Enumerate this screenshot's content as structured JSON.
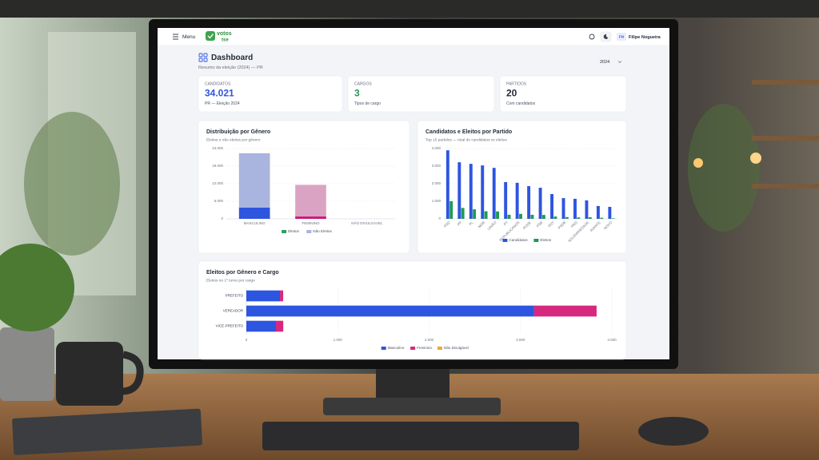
{
  "topbar": {
    "menu": "Menu",
    "logo_top": "votos",
    "logo_bottom": "tse",
    "user_initials": "FN",
    "user_name": "Filipe Nogueira"
  },
  "header": {
    "title": "Dashboard",
    "subtitle": "Resumo da eleição (2024) — PR",
    "year": "2024"
  },
  "cards": [
    {
      "label": "CANDIDATOS",
      "value": "34.021",
      "note": "PR — Eleição 2024",
      "color": "#2d55e0"
    },
    {
      "label": "CARGOS",
      "value": "3",
      "note": "Tipos de cargo",
      "color": "#1f9a55"
    },
    {
      "label": "PARTIDOS",
      "value": "20",
      "note": "Com candidatos",
      "color": "#1f2937"
    }
  ],
  "chart_data": [
    {
      "type": "bar",
      "stacked": true,
      "orientation": "vertical",
      "legend": "bottom",
      "grid": true,
      "title": "Distribuição por Gênero",
      "subtitle": "Eleitos e não eleitos por gênero",
      "categories": [
        "MASCULINO",
        "FEMININO",
        "NÃO DIVULGÁVEL"
      ],
      "series": [
        {
          "name": "Eleitos",
          "color": "#2e9e5b",
          "bar_colors": [
            "#2d55e0",
            "#c8177a",
            "#9ca3af"
          ],
          "values": [
            3840,
            800,
            0
          ]
        },
        {
          "name": "Não Eleitos",
          "color": "#a9b5de",
          "bar_colors": [
            "#a9b5de",
            "#dba3c3",
            "#d1d5db"
          ],
          "values": [
            18560,
            10800,
            0
          ]
        }
      ],
      "ylim": [
        0,
        24000
      ],
      "yticks": [
        0,
        {
          "value": 6000,
          "label": "6.000"
        },
        {
          "value": 12000,
          "label": "12.000"
        },
        {
          "value": 18000,
          "label": "18.000"
        },
        {
          "value": 24000,
          "label": "24.000"
        }
      ]
    },
    {
      "type": "bar",
      "stacked": false,
      "orientation": "vertical",
      "legend": "bottom",
      "grid": true,
      "rotate_labels": true,
      "title": "Candidatos e Eleitos por Partido",
      "subtitle": "Top 15 partidos — total de candidatos vs eleitos",
      "categories": [
        "PSD",
        "PP",
        "PL",
        "MDB",
        "UNIÃO",
        "PT",
        "REPUBLICANOS",
        "PODE",
        "PSB",
        "PDT",
        "PSDB",
        "PRD",
        "SOLIDARIEDADE",
        "AVANTE",
        "NOVO"
      ],
      "series": [
        {
          "name": "Candidatos",
          "color": "#2d55e0",
          "values": [
            3900,
            3220,
            3130,
            3040,
            2900,
            2090,
            2050,
            1860,
            1770,
            1410,
            1180,
            1140,
            1050,
            730,
            680
          ]
        },
        {
          "name": "Eleitos",
          "color": "#1f9a55",
          "values": [
            1000,
            620,
            540,
            430,
            420,
            230,
            280,
            230,
            220,
            130,
            100,
            80,
            90,
            60,
            30
          ]
        }
      ],
      "ylim": [
        0,
        4000
      ],
      "yticks": [
        0,
        {
          "value": 1000,
          "label": "1.000"
        },
        {
          "value": 2000,
          "label": "2.000"
        },
        {
          "value": 3000,
          "label": "3.000"
        },
        {
          "value": 4000,
          "label": "4.000"
        }
      ]
    },
    {
      "type": "bar",
      "stacked": true,
      "orientation": "horizontal",
      "legend": "bottom",
      "grid": true,
      "title": "Eleitos por Gênero e Cargo",
      "subtitle": "Eleitos no 1º turno por cargo",
      "categories": [
        "PREFEITO",
        "VEREADOR",
        "VICE-PREFEITO"
      ],
      "series": [
        {
          "name": "Masculino",
          "color": "#2d55e0",
          "values": [
            368,
            3150,
            324
          ]
        },
        {
          "name": "Feminino",
          "color": "#d6287f",
          "values": [
            35,
            683,
            80
          ]
        },
        {
          "name": "Não Divulgável",
          "color": "#f0a63a",
          "values": [
            0,
            0,
            0
          ]
        }
      ],
      "xlim": [
        0,
        4000
      ],
      "xticks": [
        0,
        {
          "value": 1000,
          "label": "1.000"
        },
        {
          "value": 2000,
          "label": "2.000"
        },
        {
          "value": 3000,
          "label": "3.000"
        },
        {
          "value": 4000,
          "label": "4.000"
        }
      ]
    }
  ]
}
